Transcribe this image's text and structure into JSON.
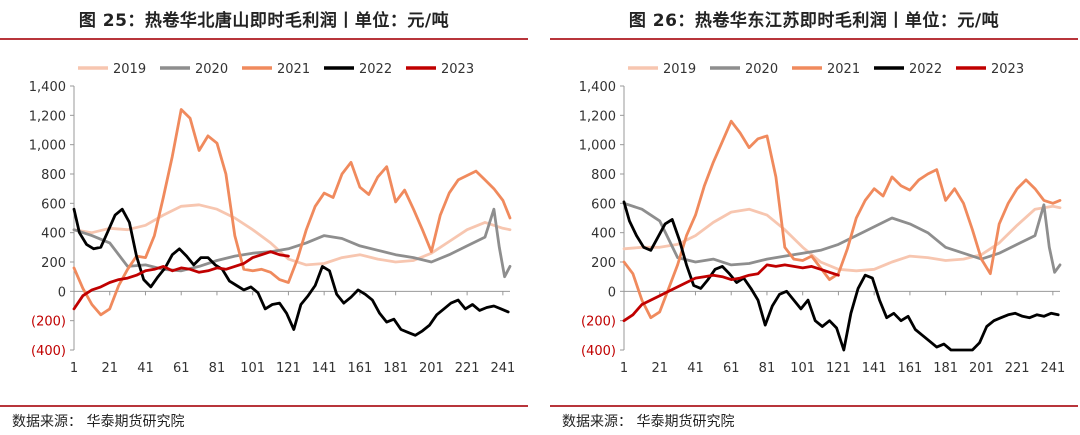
{
  "colors": {
    "2019": "#f7c6b0",
    "2020": "#8e8e8e",
    "2021": "#f08a5d",
    "2022": "#000000",
    "2023": "#c00000",
    "rule": "#b8353b",
    "negative_tick": "#c00000"
  },
  "chart_data": [
    {
      "type": "line",
      "title": "图 25：热卷华北唐山即时毛利润丨单位：元/吨",
      "source": "数据来源：  华泰期货研究院",
      "legend": [
        "2019",
        "2020",
        "2021",
        "2022",
        "2023"
      ],
      "legend_position": "top",
      "xlim": [
        1,
        245
      ],
      "x_ticks": [
        "1",
        "21",
        "41",
        "61",
        "81",
        "101",
        "121",
        "141",
        "161",
        "181",
        "201",
        "221",
        "241"
      ],
      "ylim": [
        -400,
        1400
      ],
      "y_ticks": [
        "1,400",
        "1,200",
        "1,000",
        "800",
        "600",
        "400",
        "200",
        "0",
        "(200)",
        "(400)"
      ],
      "series": [
        {
          "name": "2019",
          "x": [
            1,
            11,
            21,
            31,
            41,
            51,
            61,
            71,
            81,
            91,
            101,
            111,
            121,
            131,
            141,
            151,
            161,
            171,
            181,
            191,
            201,
            211,
            221,
            231,
            241,
            245
          ],
          "values": [
            420,
            400,
            430,
            420,
            450,
            520,
            580,
            590,
            560,
            500,
            420,
            330,
            220,
            180,
            190,
            230,
            250,
            220,
            200,
            210,
            260,
            340,
            420,
            470,
            430,
            420
          ]
        },
        {
          "name": "2020",
          "x": [
            1,
            11,
            21,
            31,
            41,
            51,
            61,
            71,
            81,
            91,
            101,
            111,
            121,
            131,
            141,
            151,
            161,
            171,
            181,
            191,
            201,
            211,
            221,
            231,
            236,
            239,
            242,
            245
          ],
          "values": [
            420,
            380,
            330,
            170,
            180,
            150,
            140,
            170,
            210,
            240,
            260,
            270,
            290,
            330,
            380,
            360,
            310,
            280,
            250,
            230,
            200,
            250,
            310,
            370,
            560,
            300,
            100,
            170
          ]
        },
        {
          "name": "2021",
          "x": [
            1,
            6,
            11,
            16,
            21,
            26,
            31,
            36,
            41,
            46,
            51,
            56,
            61,
            66,
            71,
            76,
            81,
            86,
            91,
            96,
            101,
            106,
            111,
            116,
            121,
            126,
            131,
            136,
            141,
            146,
            151,
            156,
            161,
            166,
            171,
            176,
            181,
            186,
            191,
            196,
            201,
            206,
            211,
            216,
            221,
            226,
            231,
            236,
            241,
            245
          ],
          "values": [
            160,
            20,
            -90,
            -160,
            -120,
            40,
            150,
            240,
            230,
            380,
            640,
            920,
            1240,
            1180,
            960,
            1060,
            1010,
            800,
            380,
            150,
            140,
            150,
            130,
            80,
            60,
            220,
            420,
            580,
            670,
            640,
            800,
            880,
            710,
            660,
            780,
            850,
            610,
            690,
            560,
            420,
            270,
            520,
            670,
            760,
            790,
            820,
            760,
            700,
            620,
            500
          ]
        },
        {
          "name": "2022",
          "x": [
            1,
            4,
            8,
            12,
            16,
            20,
            24,
            28,
            32,
            36,
            40,
            44,
            48,
            52,
            56,
            60,
            64,
            68,
            72,
            76,
            80,
            84,
            88,
            92,
            96,
            100,
            104,
            108,
            112,
            116,
            120,
            124,
            128,
            132,
            136,
            140,
            144,
            148,
            152,
            156,
            160,
            164,
            168,
            172,
            176,
            180,
            184,
            188,
            192,
            196,
            200,
            204,
            208,
            212,
            216,
            220,
            224,
            228,
            232,
            236,
            240,
            244
          ],
          "values": [
            560,
            400,
            320,
            290,
            300,
            410,
            520,
            560,
            470,
            240,
            80,
            30,
            100,
            160,
            250,
            290,
            240,
            180,
            230,
            230,
            180,
            150,
            70,
            40,
            10,
            30,
            -10,
            -120,
            -90,
            -80,
            -150,
            -260,
            -90,
            -30,
            40,
            170,
            140,
            -20,
            -80,
            -40,
            10,
            -20,
            -60,
            -150,
            -210,
            -190,
            -260,
            -280,
            -300,
            -270,
            -230,
            -160,
            -120,
            -80,
            -60,
            -120,
            -90,
            -130,
            -110,
            -100,
            -120,
            -140
          ]
        },
        {
          "name": "2023",
          "x": [
            1,
            6,
            11,
            16,
            21,
            26,
            31,
            36,
            41,
            46,
            51,
            56,
            61,
            66,
            71,
            76,
            81,
            86,
            91,
            96,
            101,
            106,
            111,
            116,
            121
          ],
          "values": [
            -120,
            -30,
            10,
            30,
            60,
            80,
            90,
            110,
            140,
            150,
            170,
            140,
            160,
            150,
            130,
            140,
            160,
            150,
            170,
            190,
            230,
            250,
            270,
            250,
            240
          ]
        }
      ]
    },
    {
      "type": "line",
      "title": "图 26：热卷华东江苏即时毛利润丨单位：元/吨",
      "source": "数据来源：  华泰期货研究院",
      "legend": [
        "2019",
        "2020",
        "2021",
        "2022",
        "2023"
      ],
      "legend_position": "top",
      "xlim": [
        1,
        245
      ],
      "x_ticks": [
        "1",
        "21",
        "41",
        "61",
        "81",
        "101",
        "121",
        "141",
        "161",
        "181",
        "201",
        "221",
        "241"
      ],
      "ylim": [
        -400,
        1400
      ],
      "y_ticks": [
        "1,400",
        "1,200",
        "1,000",
        "800",
        "600",
        "400",
        "200",
        "0",
        "(200)",
        "(400)"
      ],
      "series": [
        {
          "name": "2019",
          "x": [
            1,
            11,
            21,
            31,
            41,
            51,
            61,
            71,
            81,
            91,
            101,
            111,
            121,
            131,
            141,
            151,
            161,
            171,
            181,
            191,
            201,
            211,
            221,
            231,
            241,
            245
          ],
          "values": [
            290,
            300,
            300,
            320,
            380,
            470,
            540,
            560,
            520,
            420,
            300,
            200,
            150,
            140,
            150,
            200,
            240,
            230,
            210,
            220,
            250,
            330,
            450,
            560,
            580,
            570
          ]
        },
        {
          "name": "2020",
          "x": [
            1,
            11,
            21,
            31,
            41,
            51,
            61,
            71,
            81,
            91,
            101,
            111,
            121,
            131,
            141,
            151,
            161,
            171,
            181,
            191,
            201,
            211,
            221,
            231,
            236,
            239,
            242,
            245
          ],
          "values": [
            600,
            560,
            480,
            230,
            200,
            220,
            180,
            190,
            220,
            240,
            260,
            280,
            320,
            380,
            440,
            500,
            460,
            400,
            300,
            260,
            220,
            260,
            320,
            380,
            590,
            300,
            130,
            180
          ]
        },
        {
          "name": "2021",
          "x": [
            1,
            6,
            11,
            16,
            21,
            26,
            31,
            36,
            41,
            46,
            51,
            56,
            61,
            66,
            71,
            76,
            81,
            86,
            91,
            96,
            101,
            106,
            111,
            116,
            121,
            126,
            131,
            136,
            141,
            146,
            151,
            156,
            161,
            166,
            171,
            176,
            181,
            186,
            191,
            196,
            201,
            206,
            211,
            216,
            221,
            226,
            231,
            236,
            241,
            245
          ],
          "values": [
            200,
            120,
            -60,
            -180,
            -140,
            20,
            180,
            380,
            520,
            720,
            880,
            1020,
            1160,
            1080,
            980,
            1040,
            1060,
            780,
            300,
            220,
            210,
            240,
            160,
            80,
            120,
            290,
            500,
            620,
            700,
            650,
            780,
            720,
            690,
            760,
            800,
            830,
            620,
            700,
            600,
            420,
            220,
            120,
            460,
            600,
            700,
            760,
            700,
            620,
            600,
            620
          ]
        },
        {
          "name": "2022",
          "x": [
            1,
            4,
            8,
            12,
            16,
            20,
            24,
            28,
            32,
            36,
            40,
            44,
            48,
            52,
            56,
            60,
            64,
            68,
            72,
            76,
            80,
            84,
            88,
            92,
            96,
            100,
            104,
            108,
            112,
            116,
            120,
            124,
            128,
            132,
            136,
            140,
            144,
            148,
            152,
            156,
            160,
            164,
            168,
            172,
            176,
            180,
            184,
            188,
            192,
            196,
            200,
            204,
            208,
            212,
            216,
            220,
            224,
            228,
            232,
            236,
            240,
            244
          ],
          "values": [
            610,
            480,
            380,
            300,
            280,
            370,
            460,
            490,
            350,
            180,
            40,
            20,
            80,
            150,
            170,
            120,
            60,
            90,
            20,
            -60,
            -230,
            -100,
            -20,
            0,
            -60,
            -120,
            -60,
            -200,
            -240,
            -200,
            -250,
            -400,
            -150,
            20,
            110,
            90,
            -60,
            -180,
            -150,
            -200,
            -170,
            -260,
            -300,
            -340,
            -380,
            -360,
            -400,
            -400,
            -400,
            -400,
            -350,
            -240,
            -200,
            -180,
            -160,
            -150,
            -170,
            -180,
            -160,
            -170,
            -150,
            -160
          ]
        },
        {
          "name": "2023",
          "x": [
            1,
            6,
            11,
            16,
            21,
            26,
            31,
            36,
            41,
            46,
            51,
            56,
            61,
            66,
            71,
            76,
            81,
            86,
            91,
            96,
            101,
            106,
            111,
            116,
            121
          ],
          "values": [
            -200,
            -160,
            -90,
            -60,
            -30,
            0,
            30,
            60,
            90,
            100,
            110,
            100,
            80,
            90,
            110,
            120,
            180,
            170,
            180,
            170,
            160,
            170,
            150,
            130,
            110
          ]
        }
      ]
    }
  ]
}
